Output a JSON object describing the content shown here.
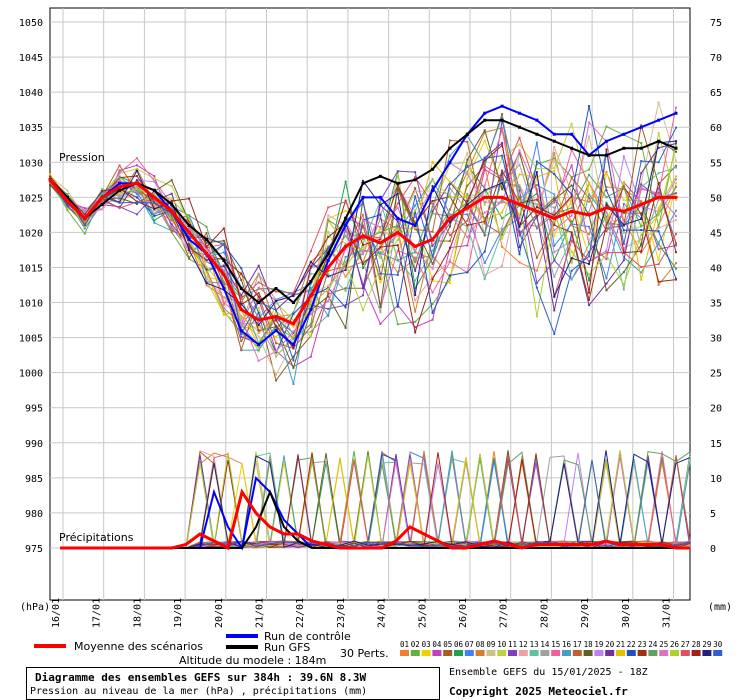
{
  "chart_data": {
    "type": "line",
    "title": "Diagramme des ensembles GEFS sur 384h : 39.6N 8.3W",
    "subtitle": "Pression au niveau de la mer (hPa) , précipitations (mm)",
    "left_axis": {
      "unit": "(hPa)",
      "ticks": [
        1050,
        1045,
        1040,
        1035,
        1030,
        1025,
        1020,
        1015,
        1010,
        1005,
        1000,
        995,
        990,
        985,
        980,
        975
      ]
    },
    "right_axis": {
      "unit": "(mm)",
      "ticks": [
        75,
        70,
        65,
        60,
        55,
        50,
        45,
        40,
        35,
        30,
        25,
        20,
        15,
        10,
        5,
        0
      ]
    },
    "x_ticks": [
      "16/01",
      "17/01",
      "18/01",
      "19/01",
      "20/01",
      "21/01",
      "22/01",
      "23/01",
      "24/01",
      "25/01",
      "26/01",
      "27/01",
      "28/01",
      "29/01",
      "30/01",
      "31/01"
    ],
    "pressure_label": "Pression",
    "precip_label": "Précipitations",
    "altitude": "Altitude du modele : 184m",
    "run_info": "Ensemble GEFS du 15/01/2025 - 18Z",
    "copyright": "Copyright 2025 Meteociel.fr",
    "legend": {
      "mean": "Moyenne des scénarios",
      "control": "Run de contrôle",
      "gfs": "Run GFS",
      "perts": "30 Perts.",
      "pert_numbers": [
        "01",
        "02",
        "03",
        "04",
        "05",
        "06",
        "07",
        "08",
        "09",
        "10",
        "11",
        "12",
        "13",
        "14",
        "15",
        "16",
        "17",
        "18",
        "19",
        "20",
        "21",
        "22",
        "23",
        "24",
        "25",
        "26",
        "27",
        "28",
        "29",
        "30"
      ],
      "pert_colors": [
        "#f08030",
        "#60b040",
        "#f0d000",
        "#c040c0",
        "#a06020",
        "#20a050",
        "#4080ff",
        "#d08030",
        "#d0c090",
        "#c0d040",
        "#8040c0",
        "#f0a0a0",
        "#60c0a0",
        "#a0a0a0",
        "#f060a0",
        "#40a0c0",
        "#c06030",
        "#606020",
        "#c080f0",
        "#7030a0",
        "#e0c000",
        "#2050c0",
        "#a03010",
        "#60a060",
        "#e070c0",
        "#b0d030",
        "#e05060",
        "#a02020",
        "#202080",
        "#3060d0"
      ]
    },
    "series": [
      {
        "name": "Moyenne des scénarios",
        "color": "#ff0000",
        "pressure": [
          1027.5,
          1024.5,
          1022,
          1025,
          1026.5,
          1027,
          1025,
          1023,
          1020,
          1017,
          1014,
          1009,
          1007.5,
          1008,
          1007,
          1011,
          1015,
          1018,
          1019.5,
          1018.5,
          1020,
          1018,
          1019,
          1022,
          1023.5,
          1025,
          1025,
          1024,
          1023,
          1022,
          1023,
          1022.5,
          1023.5,
          1023,
          1024,
          1025,
          1025
        ],
        "precip": [
          0,
          0,
          0,
          0,
          0,
          0,
          0,
          0,
          0,
          0.5,
          2,
          1,
          0,
          8,
          5,
          3,
          2,
          2,
          1,
          0.5,
          0,
          0,
          0,
          0,
          1,
          3,
          2,
          1,
          0,
          0,
          0.5,
          1,
          0.5,
          0,
          0.5,
          0.5,
          0.5,
          0.5,
          0.5,
          1,
          0.5,
          0.5,
          0.5,
          0.5,
          0,
          0
        ]
      },
      {
        "name": "Run de contrôle",
        "color": "#0000ff",
        "pressure": [
          1027.5,
          1025,
          1022,
          1025,
          1027,
          1027,
          1026,
          1023,
          1019,
          1017,
          1012,
          1006,
          1004,
          1006,
          1004,
          1009,
          1016,
          1021,
          1025,
          1025,
          1022,
          1021,
          1026,
          1030,
          1034,
          1037,
          1038,
          1037,
          1036,
          1034,
          1034,
          1031,
          1033,
          1034,
          1035,
          1036,
          1037
        ],
        "precip": [
          0,
          0,
          0,
          0,
          0,
          0,
          0,
          0,
          0,
          0,
          0,
          8,
          3,
          0,
          10,
          8,
          4,
          2,
          0,
          0,
          0,
          0,
          0,
          0,
          0,
          0,
          0,
          0,
          0,
          0,
          0,
          0,
          0,
          0,
          0,
          0,
          0,
          0,
          0,
          0,
          0,
          0,
          0,
          0,
          0,
          0
        ]
      },
      {
        "name": "Run GFS",
        "color": "#000000",
        "pressure": [
          1027.5,
          1025,
          1022,
          1024,
          1026,
          1027,
          1026,
          1024,
          1021,
          1019,
          1016,
          1012,
          1010,
          1012,
          1010,
          1013,
          1017,
          1022,
          1027,
          1028,
          1027,
          1027.5,
          1029,
          1032,
          1034,
          1036,
          1036,
          1035,
          1034,
          1033,
          1032,
          1031,
          1031,
          1032,
          1032,
          1033,
          1032
        ],
        "precip": [
          0,
          0,
          0,
          0,
          0,
          0,
          0,
          0,
          0,
          0,
          0,
          0,
          0,
          0,
          3,
          8,
          3,
          1,
          0,
          0,
          0,
          0,
          0,
          0,
          0,
          0,
          0,
          0,
          0,
          0,
          0,
          0,
          0,
          0,
          0,
          0,
          0,
          0,
          0,
          0,
          0,
          0,
          0,
          0,
          0,
          0
        ]
      }
    ]
  }
}
